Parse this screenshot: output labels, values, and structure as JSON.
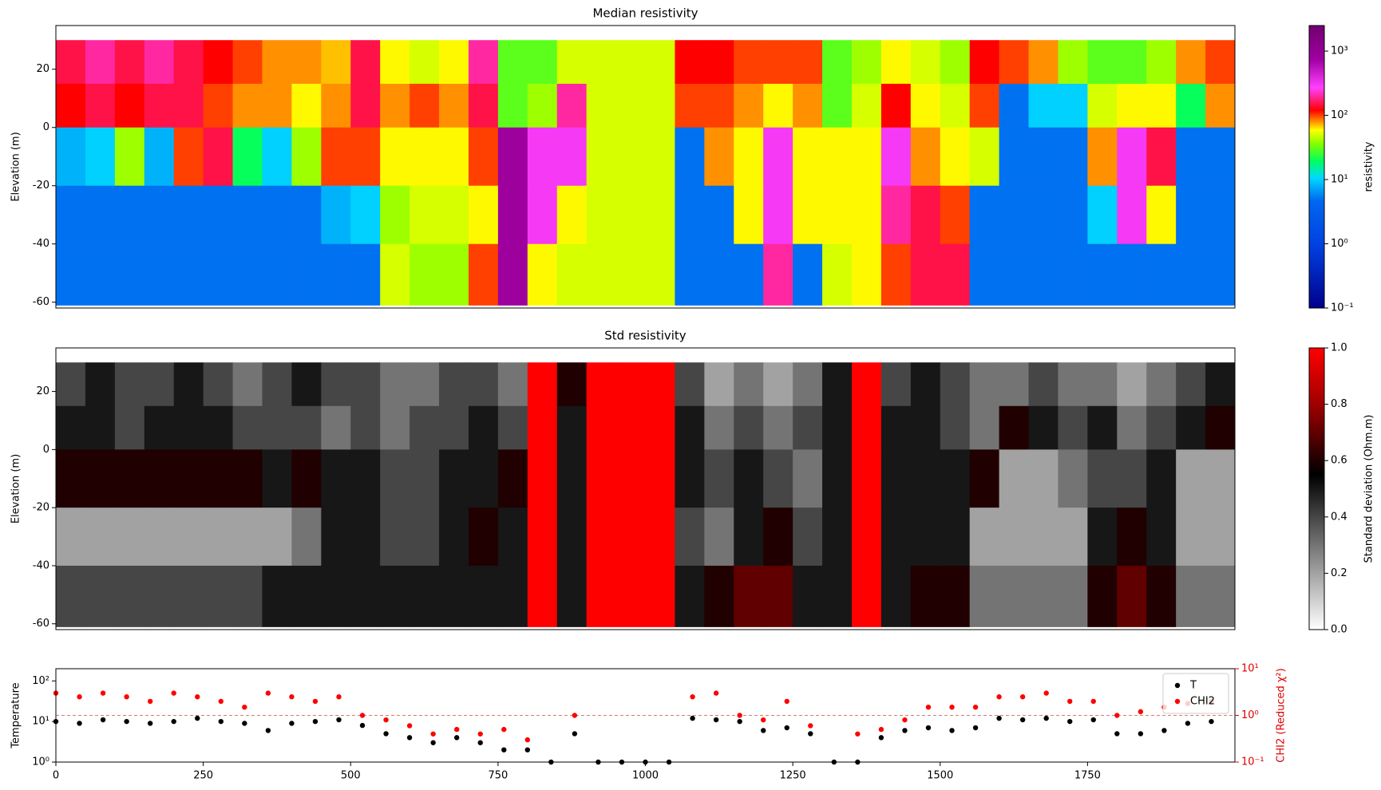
{
  "chart_data": [
    {
      "type": "heatmap",
      "title": "Median resistivity",
      "y_label": "Elevation (m)",
      "xlim": [
        0,
        2000
      ],
      "ylim": [
        -62,
        35
      ],
      "yticks": [
        -60,
        -40,
        -20,
        0,
        20
      ],
      "x_edges": [
        0,
        50,
        100,
        150,
        200,
        250,
        300,
        350,
        400,
        450,
        500,
        550,
        600,
        650,
        700,
        750,
        800,
        850,
        900,
        950,
        1000,
        1050,
        1100,
        1150,
        1200,
        1250,
        1300,
        1350,
        1400,
        1450,
        1500,
        1550,
        1600,
        1650,
        1700,
        1750,
        1800,
        1850,
        1900,
        1950,
        2000
      ],
      "y_edges": [
        30,
        15,
        0,
        -20,
        -40,
        -61
      ],
      "values": [
        [
          150,
          200,
          150,
          200,
          150,
          120,
          100,
          80,
          80,
          70,
          150,
          60,
          50,
          60,
          200,
          30,
          30,
          50,
          50,
          50,
          50,
          120,
          120,
          100,
          100,
          100,
          30,
          40,
          60,
          50,
          40,
          120,
          100,
          80,
          40,
          30,
          30,
          40,
          80,
          100
        ],
        [
          120,
          150,
          120,
          150,
          150,
          100,
          80,
          80,
          60,
          80,
          150,
          80,
          100,
          80,
          150,
          30,
          40,
          200,
          50,
          50,
          50,
          100,
          100,
          80,
          60,
          80,
          30,
          50,
          120,
          60,
          50,
          100,
          5,
          10,
          10,
          50,
          60,
          60,
          20,
          80
        ],
        [
          8,
          10,
          40,
          8,
          100,
          150,
          20,
          10,
          40,
          100,
          100,
          60,
          60,
          60,
          100,
          800,
          300,
          300,
          50,
          50,
          50,
          5,
          80,
          60,
          300,
          60,
          60,
          60,
          300,
          80,
          60,
          50,
          5,
          5,
          5,
          80,
          300,
          150,
          5,
          5
        ],
        [
          5,
          5,
          5,
          5,
          5,
          5,
          5,
          5,
          5,
          8,
          10,
          40,
          50,
          50,
          60,
          800,
          300,
          60,
          50,
          50,
          50,
          5,
          5,
          60,
          300,
          60,
          60,
          60,
          200,
          150,
          100,
          5,
          5,
          5,
          5,
          10,
          300,
          60,
          5,
          5
        ],
        [
          5,
          5,
          5,
          5,
          5,
          5,
          5,
          5,
          5,
          5,
          5,
          50,
          40,
          40,
          100,
          800,
          60,
          50,
          50,
          50,
          50,
          5,
          5,
          5,
          200,
          5,
          50,
          60,
          100,
          150,
          150,
          5,
          5,
          5,
          5,
          5,
          5,
          5,
          5,
          5
        ]
      ],
      "colorbar": {
        "label": "resistivity",
        "log": true,
        "lim": [
          0.1,
          2500
        ],
        "ticks": [
          {
            "value": 0.1,
            "label": "10⁻¹"
          },
          {
            "value": 1,
            "label": "10⁰"
          },
          {
            "value": 10,
            "label": "10¹"
          },
          {
            "value": 100,
            "label": "10²"
          },
          {
            "value": 1000,
            "label": "10³"
          }
        ],
        "colorscale": [
          [
            0,
            "#00008b"
          ],
          [
            0.22,
            "#0040e0"
          ],
          [
            0.38,
            "#0068f0"
          ],
          [
            0.46,
            "#00d8ff"
          ],
          [
            0.52,
            "#00ff60"
          ],
          [
            0.58,
            "#80ff00"
          ],
          [
            0.63,
            "#ffff00"
          ],
          [
            0.66,
            "#ff9000"
          ],
          [
            0.7,
            "#ff0000"
          ],
          [
            0.78,
            "#ff40ff"
          ],
          [
            0.88,
            "#a000a0"
          ],
          [
            1,
            "#700070"
          ]
        ]
      }
    },
    {
      "type": "heatmap",
      "title": "Std resistivity",
      "y_label": "Elevation (m)",
      "xlim": [
        0,
        2000
      ],
      "ylim": [
        -62,
        35
      ],
      "yticks": [
        -60,
        -40,
        -20,
        0,
        20
      ],
      "x_edges": [
        0,
        50,
        100,
        150,
        200,
        250,
        300,
        350,
        400,
        450,
        500,
        550,
        600,
        650,
        700,
        750,
        800,
        850,
        900,
        950,
        1000,
        1050,
        1100,
        1150,
        1200,
        1250,
        1300,
        1350,
        1400,
        1450,
        1500,
        1550,
        1600,
        1650,
        1700,
        1750,
        1800,
        1850,
        1900,
        1950,
        2000
      ],
      "y_edges": [
        30,
        15,
        0,
        -20,
        -40,
        -61
      ],
      "values": [
        [
          0.4,
          0.5,
          0.4,
          0.4,
          0.5,
          0.4,
          0.3,
          0.4,
          0.5,
          0.4,
          0.4,
          0.3,
          0.3,
          0.4,
          0.4,
          0.3,
          1,
          0.6,
          1,
          1,
          1,
          0.4,
          0.2,
          0.3,
          0.2,
          0.3,
          0.5,
          1,
          0.4,
          0.5,
          0.4,
          0.3,
          0.3,
          0.4,
          0.3,
          0.3,
          0.2,
          0.3,
          0.4,
          0.5
        ],
        [
          0.5,
          0.5,
          0.4,
          0.5,
          0.5,
          0.5,
          0.4,
          0.4,
          0.4,
          0.3,
          0.4,
          0.3,
          0.4,
          0.4,
          0.5,
          0.4,
          1,
          0.5,
          1,
          1,
          1,
          0.5,
          0.3,
          0.4,
          0.3,
          0.4,
          0.5,
          1,
          0.5,
          0.5,
          0.4,
          0.3,
          0.6,
          0.5,
          0.4,
          0.5,
          0.3,
          0.4,
          0.5,
          0.6
        ],
        [
          0.6,
          0.6,
          0.6,
          0.6,
          0.6,
          0.6,
          0.6,
          0.5,
          0.6,
          0.5,
          0.5,
          0.4,
          0.4,
          0.5,
          0.5,
          0.6,
          1,
          0.5,
          1,
          1,
          1,
          0.5,
          0.4,
          0.5,
          0.4,
          0.3,
          0.5,
          1,
          0.5,
          0.5,
          0.5,
          0.6,
          0.2,
          0.2,
          0.3,
          0.4,
          0.4,
          0.5,
          0.2,
          0.2
        ],
        [
          0.2,
          0.2,
          0.2,
          0.2,
          0.2,
          0.2,
          0.2,
          0.2,
          0.3,
          0.5,
          0.5,
          0.4,
          0.4,
          0.5,
          0.6,
          0.5,
          1,
          0.5,
          1,
          1,
          1,
          0.4,
          0.3,
          0.5,
          0.6,
          0.4,
          0.5,
          1,
          0.5,
          0.5,
          0.5,
          0.2,
          0.2,
          0.2,
          0.2,
          0.5,
          0.6,
          0.5,
          0.2,
          0.2
        ],
        [
          0.4,
          0.4,
          0.4,
          0.4,
          0.4,
          0.4,
          0.4,
          0.5,
          0.5,
          0.5,
          0.5,
          0.5,
          0.5,
          0.5,
          0.5,
          0.5,
          1,
          0.5,
          1,
          1,
          1,
          0.5,
          0.6,
          0.7,
          0.7,
          0.5,
          0.5,
          1,
          0.5,
          0.6,
          0.6,
          0.3,
          0.3,
          0.3,
          0.3,
          0.6,
          0.7,
          0.6,
          0.3,
          0.3
        ]
      ],
      "colorbar": {
        "label": "Standard deviation (Ohm.m)",
        "log": false,
        "lim": [
          0,
          1
        ],
        "ticks": [
          {
            "value": 0,
            "label": "0.0"
          },
          0.2,
          0.4,
          0.6,
          0.8,
          {
            "value": 1,
            "label": "1.0"
          }
        ],
        "colorscale": [
          [
            0,
            "#ffffff"
          ],
          [
            0.55,
            "#000000"
          ],
          [
            0.8,
            "#a00000"
          ],
          [
            1,
            "#ff0000"
          ]
        ]
      }
    },
    {
      "type": "scatter",
      "y_label": "Temperature",
      "y2_label": "CHI2 (Reduced χ²)",
      "xlim": [
        0,
        2000
      ],
      "xticks": [
        0,
        250,
        500,
        750,
        1000,
        1250,
        1500,
        1750
      ],
      "ylim": [
        1,
        200
      ],
      "ylog": true,
      "yticks": [
        {
          "value": 1,
          "label": "10⁰"
        },
        {
          "value": 10,
          "label": "10¹"
        },
        {
          "value": 100,
          "label": "10²"
        }
      ],
      "y2lim": [
        0.1,
        10
      ],
      "y2log": true,
      "y2ticks": [
        {
          "value": 0.1,
          "label": "10⁻¹"
        },
        {
          "value": 1,
          "label": "10⁰"
        },
        {
          "value": 10,
          "label": "10¹"
        }
      ],
      "x": [
        0,
        40,
        80,
        120,
        160,
        200,
        240,
        280,
        320,
        360,
        400,
        440,
        480,
        520,
        560,
        600,
        640,
        680,
        720,
        760,
        800,
        840,
        880,
        920,
        960,
        1000,
        1040,
        1080,
        1120,
        1160,
        1200,
        1240,
        1280,
        1320,
        1360,
        1400,
        1440,
        1480,
        1520,
        1560,
        1600,
        1640,
        1680,
        1720,
        1760,
        1800,
        1840,
        1880,
        1920,
        1960
      ],
      "series": [
        {
          "name": "T",
          "color": "#000000",
          "values": [
            10,
            9,
            11,
            10,
            9,
            10,
            12,
            10,
            9,
            6,
            9,
            10,
            11,
            8,
            5,
            4,
            3,
            4,
            3,
            2,
            2,
            1,
            5,
            1,
            1,
            1,
            1,
            12,
            11,
            10,
            6,
            7,
            5,
            1,
            1,
            4,
            6,
            7,
            6,
            7,
            12,
            11,
            12,
            10,
            11,
            5,
            5,
            6,
            9,
            10
          ]
        },
        {
          "name": "CHI2",
          "color": "#ff0000",
          "axis": "y2",
          "values": [
            3,
            2.5,
            3,
            2.5,
            2,
            3,
            2.5,
            2,
            1.5,
            3,
            2.5,
            2,
            2.5,
            1,
            0.8,
            0.6,
            0.4,
            0.5,
            0.4,
            0.5,
            0.3,
            null,
            1,
            null,
            null,
            null,
            null,
            2.5,
            3,
            1,
            0.8,
            2,
            0.6,
            null,
            0.4,
            0.5,
            0.8,
            1.5,
            1.5,
            1.5,
            2.5,
            2.5,
            3,
            2,
            2,
            1,
            1.2,
            1.5,
            1.8,
            2
          ]
        }
      ],
      "hline": {
        "axis": "y2",
        "value": 1,
        "color": "#d08070"
      },
      "legend": "upper right"
    }
  ]
}
